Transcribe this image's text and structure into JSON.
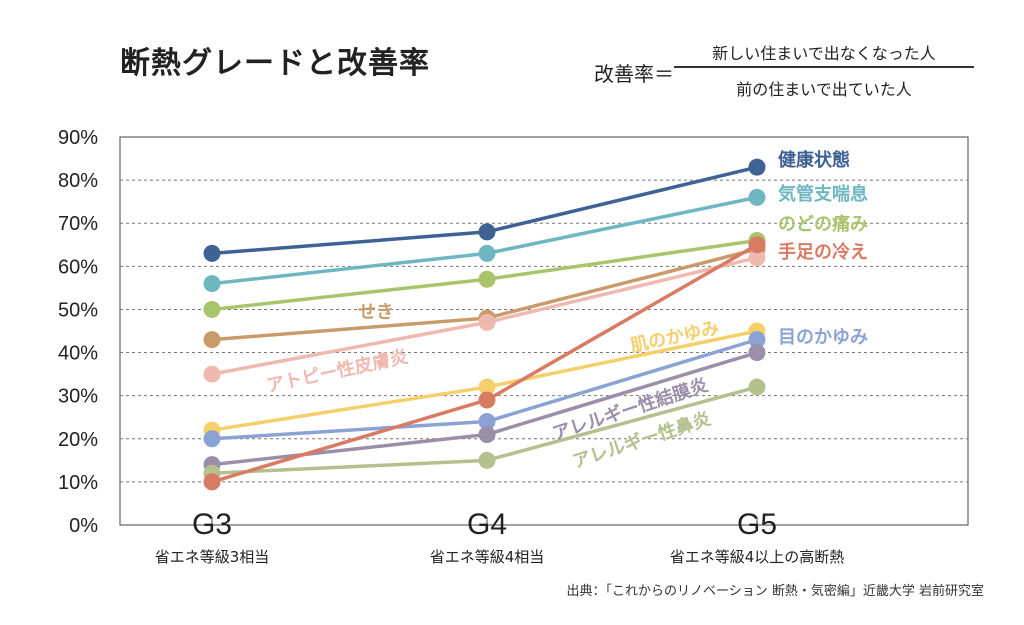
{
  "title": "断熱グレードと改善率",
  "formula": {
    "lhs": "改善率＝",
    "numerator": "新しい住まいで出なくなった人",
    "denominator": "前の住まいで出ていた人"
  },
  "source": "出典：「これからのリノベーション 断熱・気密編」近畿大学 岩前研究室",
  "chart_data": {
    "type": "line",
    "categories": [
      "G3",
      "G4",
      "G5"
    ],
    "category_sublabels": [
      "省エネ等級3相当",
      "省エネ等級4相当",
      "省エネ等級4以上の高断熱"
    ],
    "ylim": [
      0,
      90
    ],
    "yticks": [
      "0%",
      "10%",
      "20%",
      "30%",
      "40%",
      "50%",
      "60%",
      "70%",
      "80%",
      "90%"
    ],
    "grid": true,
    "series": [
      {
        "name": "健康状態",
        "values": [
          63,
          68,
          83
        ],
        "color": "#3f6194"
      },
      {
        "name": "気管支喘息",
        "values": [
          56,
          63,
          76
        ],
        "color": "#6fb7c0"
      },
      {
        "name": "のどの痛み",
        "values": [
          50,
          57,
          66
        ],
        "color": "#a9c46a"
      },
      {
        "name": "せき",
        "values": [
          43,
          48,
          64
        ],
        "color": "#c99a6a"
      },
      {
        "name": "アトピー性皮膚炎",
        "values": [
          35,
          47,
          62
        ],
        "color": "#f0b9b0"
      },
      {
        "name": "肌のかゆみ",
        "values": [
          22,
          32,
          45
        ],
        "color": "#f5cf6a"
      },
      {
        "name": "目のかゆみ",
        "values": [
          20,
          24,
          43
        ],
        "color": "#8aa3d4"
      },
      {
        "name": "アレルギー性結膜炎",
        "values": [
          14,
          21,
          40
        ],
        "color": "#9b8ea8"
      },
      {
        "name": "アレルギー性鼻炎",
        "values": [
          12,
          15,
          32
        ],
        "color": "#b4c08e"
      },
      {
        "name": "手足の冷え",
        "values": [
          10,
          29,
          65
        ],
        "color": "#d97a63"
      }
    ]
  }
}
